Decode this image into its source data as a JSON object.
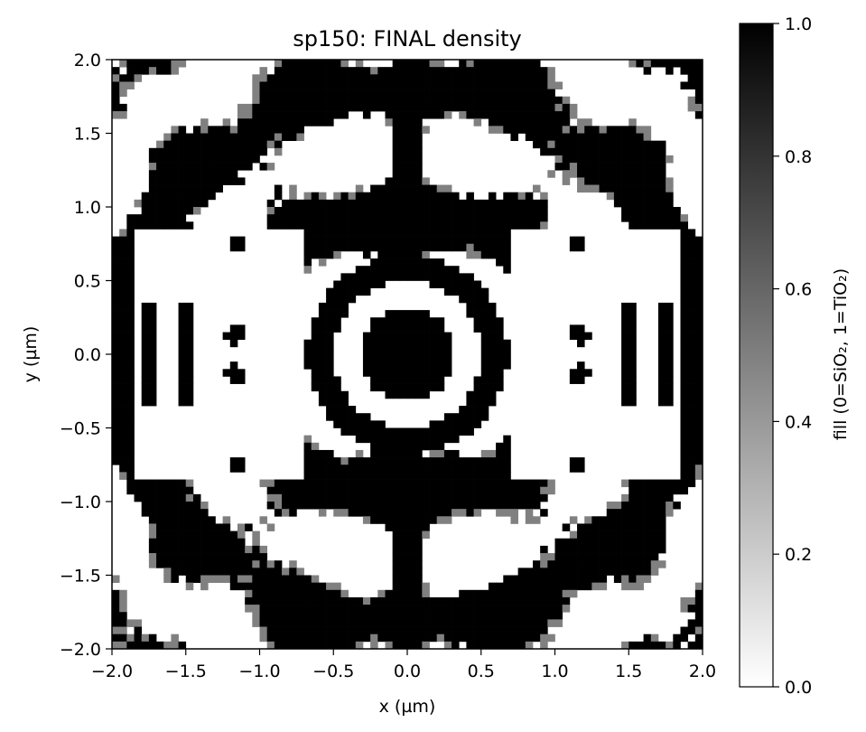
{
  "chart_data": {
    "type": "heatmap",
    "title": "sp150: FINAL density",
    "xlabel": "x (µm)",
    "ylabel": "y (µm)",
    "xlim": [
      -2.0,
      2.0
    ],
    "ylim": [
      -2.0,
      2.0
    ],
    "xticks": [
      "−2.0",
      "−1.5",
      "−1.0",
      "−0.5",
      "0.0",
      "0.5",
      "1.0",
      "1.5",
      "2.0"
    ],
    "yticks": [
      "−2.0",
      "−1.5",
      "−1.0",
      "−0.5",
      "0.0",
      "0.5",
      "1.0",
      "1.5",
      "2.0"
    ],
    "grid_size": 80,
    "colormap": "gray_r",
    "colorbar": {
      "label": "fill (0=SiO₂, 1=TiO₂)",
      "range": [
        0.0,
        1.0
      ],
      "ticks": [
        "0.0",
        "0.2",
        "0.4",
        "0.6",
        "0.8",
        "1.0"
      ],
      "color_low": "#ffffff",
      "color_high": "#000000"
    },
    "grid": false,
    "features": {
      "central_disk_radius": 0.32,
      "ring_inner_radius": 0.5,
      "ring_outer_radius": 0.68,
      "symmetry": "four-fold mirror (x and y)"
    }
  }
}
